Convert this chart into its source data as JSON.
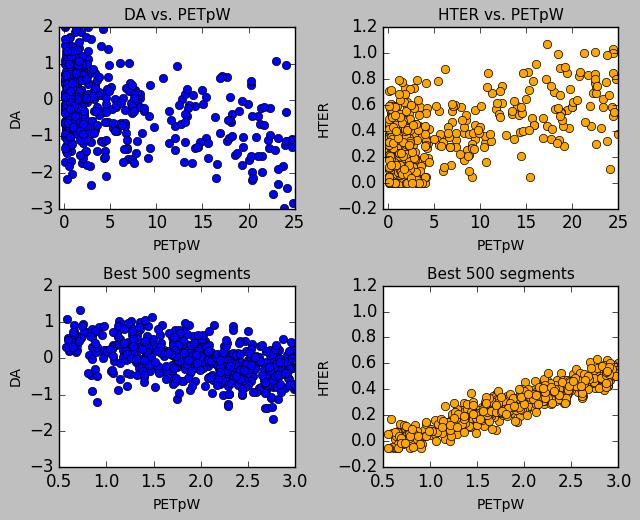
{
  "title_tl": "DA vs. PETpW",
  "title_tr": "HTER vs. PETpW",
  "title_bl": "Best 500 segments",
  "title_br": "Best 500 segments",
  "xlabel": "PETpW",
  "ylabel_left": "DA",
  "ylabel_right": "HTER",
  "color_blue": "#0000FF",
  "color_orange": "#FFA500",
  "marker_edge": "black",
  "marker_size": 6,
  "seed": 42,
  "n_full": 450,
  "n_best": 500,
  "xlim_full": [
    -0.5,
    25
  ],
  "xlim_best": [
    0.5,
    3.0
  ],
  "ylim_da_full": [
    -3.0,
    2.0
  ],
  "ylim_hter_full": [
    -0.2,
    1.2
  ],
  "ylim_da_best": [
    -3.0,
    2.0
  ],
  "ylim_hter_best": [
    -0.2,
    1.2
  ],
  "xticks_full": [
    0,
    5,
    10,
    15,
    20,
    25
  ],
  "yticks_da": [
    -3,
    -2,
    -1,
    0,
    1,
    2
  ],
  "yticks_hter": [
    -0.2,
    0.0,
    0.2,
    0.4,
    0.6,
    0.8,
    1.0,
    1.2
  ],
  "xticks_best": [
    0.5,
    1.0,
    1.5,
    2.0,
    2.5,
    3.0
  ]
}
